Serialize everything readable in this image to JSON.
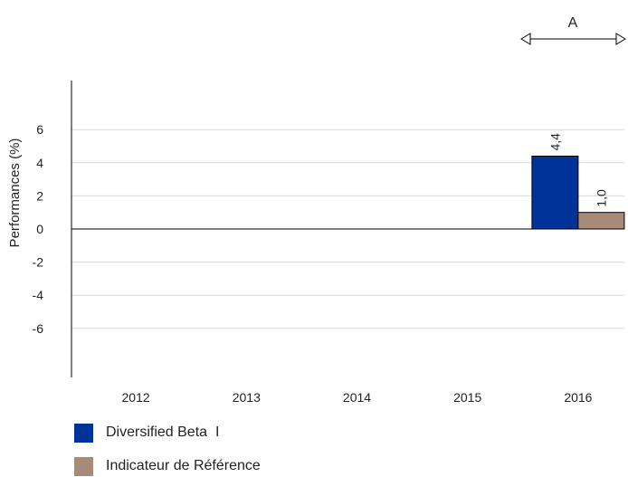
{
  "chart_data": {
    "type": "bar",
    "categories": [
      "2012",
      "2013",
      "2014",
      "2015",
      "2016"
    ],
    "series": [
      {
        "name": "Diversified Beta  I",
        "values": [
          null,
          null,
          null,
          null,
          4.4
        ],
        "labels": [
          "",
          "",
          "",
          "",
          "4,4"
        ],
        "color": "#003399"
      },
      {
        "name": "Indicateur de Référence",
        "values": [
          null,
          null,
          null,
          null,
          1.0
        ],
        "labels": [
          "",
          "",
          "",
          "",
          "1,0"
        ],
        "color": "#a88a78"
      }
    ],
    "ylabel": "Performances (%)",
    "ylim": [
      -9,
      9
    ],
    "yticks": [
      6,
      4,
      2,
      0,
      -2,
      -4,
      -6
    ],
    "ytick_labels": [
      "6",
      "4",
      "2",
      "0",
      "-2",
      "-4",
      "-6"
    ],
    "grid": true,
    "legend_position": "bottom-left",
    "annotation": {
      "text": "A",
      "type": "double-arrow",
      "spans": [
        "2016"
      ]
    }
  }
}
